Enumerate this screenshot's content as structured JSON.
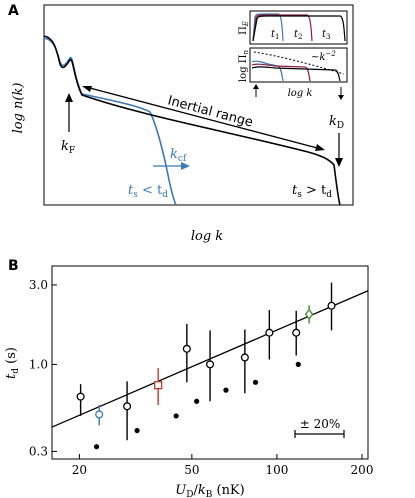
{
  "panel_a": {
    "label": "A",
    "ylabel": "log n(k)",
    "xlabel": "log k",
    "annotations": {
      "inertial_range": "Inertial range",
      "kF": "k",
      "kF_sub": "F",
      "kD": "k",
      "kD_sub": "D",
      "kcf": "k",
      "kcf_sub": "cf",
      "ts_lt_td": "t",
      "ts_lt_td_sub": "s",
      "ts_lt_td_rest": " < t",
      "ts_lt_td_sub2": "d",
      "ts_gt_td": "t",
      "ts_gt_td_sub": "s",
      "ts_gt_td_rest": " > t",
      "ts_gt_td_sub2": "d"
    },
    "inset": {
      "top_ylabel": "Π",
      "top_ylabel_sub": "E",
      "bottom_ylabel": "log Π",
      "bottom_ylabel_sub": "n",
      "xlabel": "log k",
      "t1": "t",
      "t1_sub": "1",
      "t2": "t",
      "t2_sub": "2",
      "t3": "t",
      "t3_sub": "3",
      "scaling": "~k",
      "scaling_exp": "−2"
    },
    "colors": {
      "black_curve": "#000000",
      "blue_curve": "#3a7ab5",
      "red_curve": "#8b1e3f"
    }
  },
  "panel_b": {
    "label": "B",
    "scale_bar_label": "± 20%"
  },
  "chart_data": [
    {
      "type": "line",
      "panel": "A",
      "title": "",
      "xlabel": "log k",
      "ylabel": "log n(k)",
      "series": [
        {
          "name": "t_s > t_d",
          "color": "#000000"
        },
        {
          "name": "t_s < t_d",
          "color": "#3a7ab5"
        }
      ],
      "ticks": "none"
    },
    {
      "type": "scatter",
      "panel": "B",
      "xlabel": "U_D/k_B (nK)",
      "ylabel": "t_d (s)",
      "xscale": "log",
      "yscale": "log",
      "xlim": [
        16,
        210
      ],
      "ylim": [
        0.27,
        3.9
      ],
      "xticks": [
        20,
        50,
        100,
        200
      ],
      "yticks": [
        0.3,
        1.0,
        3.0
      ],
      "xticklabels": [
        "20",
        "50",
        "100",
        "200"
      ],
      "yticklabels": [
        "0.3",
        "1.0",
        "3.0"
      ],
      "series": [
        {
          "name": "open",
          "marker": "circle-open",
          "points": [
            {
              "x": 20.2,
              "y": 0.64,
              "ylo": 0.49,
              "yhi": 0.76
            },
            {
              "x": 29.5,
              "y": 0.56,
              "ylo": 0.35,
              "yhi": 0.79
            },
            {
              "x": 48,
              "y": 1.24,
              "ylo": 0.78,
              "yhi": 1.75
            },
            {
              "x": 58,
              "y": 1.0,
              "ylo": 0.6,
              "yhi": 1.6
            },
            {
              "x": 77,
              "y": 1.1,
              "ylo": 0.67,
              "yhi": 1.62
            },
            {
              "x": 94,
              "y": 1.55,
              "ylo": 1.07,
              "yhi": 2.12
            },
            {
              "x": 117,
              "y": 1.55,
              "ylo": 1.13,
              "yhi": 2.1
            },
            {
              "x": 156,
              "y": 2.25,
              "ylo": 1.6,
              "yhi": 3.1
            }
          ]
        },
        {
          "name": "blue",
          "marker": "circle-open",
          "color": "#3a7ab5",
          "points": [
            {
              "x": 23.5,
              "y": 0.5,
              "ylo": 0.43,
              "yhi": 0.57
            }
          ]
        },
        {
          "name": "red",
          "marker": "square-open",
          "color": "#c0392b",
          "points": [
            {
              "x": 38,
              "y": 0.75,
              "ylo": 0.57,
              "yhi": 0.95
            }
          ]
        },
        {
          "name": "green",
          "marker": "diamond-open",
          "color": "#3a8a2a",
          "points": [
            {
              "x": 130,
              "y": 2.0,
              "ylo": 1.76,
              "yhi": 2.26
            }
          ]
        },
        {
          "name": "filled",
          "marker": "circle-filled",
          "points": [
            {
              "x": 23,
              "y": 0.32
            },
            {
              "x": 32,
              "y": 0.4
            },
            {
              "x": 44,
              "y": 0.49
            },
            {
              "x": 52,
              "y": 0.6
            },
            {
              "x": 66,
              "y": 0.7
            },
            {
              "x": 84,
              "y": 0.78
            },
            {
              "x": 119,
              "y": 1.0
            }
          ]
        }
      ],
      "fit_line": {
        "points": [
          {
            "x": 16,
            "y": 0.42
          },
          {
            "x": 210,
            "y": 2.77
          }
        ]
      }
    }
  ]
}
